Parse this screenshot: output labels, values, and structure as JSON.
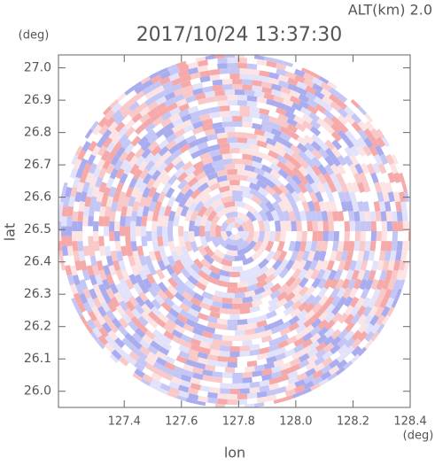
{
  "chart_data": {
    "type": "radar-ppi",
    "title": "2017/10/24 13:37:30",
    "subtitle": "ALT(km) 2.0",
    "x_label": "lon",
    "y_label": "lat",
    "x_unit": "(deg)",
    "y_unit": "(deg)",
    "xlim": [
      127.17,
      128.4
    ],
    "ylim": [
      25.95,
      27.04
    ],
    "xticks": [
      127.4,
      127.6,
      127.8,
      {
        "value": 128,
        "label": "128.0"
      },
      128.2,
      128.4
    ],
    "yticks": [
      {
        "value": 26,
        "label": "26.0"
      },
      26.1,
      26.2,
      26.3,
      26.4,
      26.5,
      26.6,
      26.7,
      26.8,
      26.9,
      {
        "value": 27,
        "label": "27.0"
      }
    ]
  }
}
